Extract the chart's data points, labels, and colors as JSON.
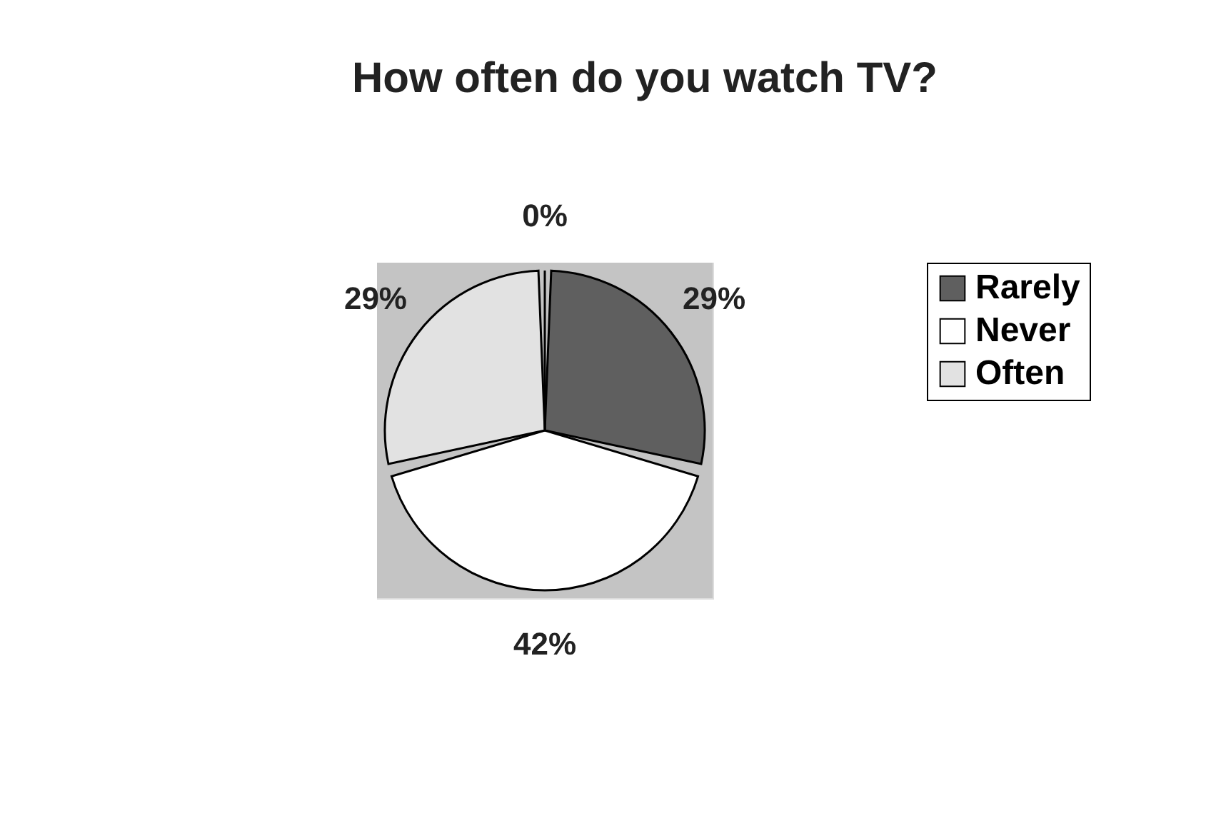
{
  "chart_data": {
    "type": "pie",
    "title": "How often do you watch TV?",
    "categories": [
      "Rarely",
      "Never",
      "Often",
      null
    ],
    "values": [
      29,
      42,
      29,
      0
    ],
    "colors": [
      "#5f5f5f",
      "#ffffff",
      "#e2e2e2",
      "#ffffff"
    ],
    "value_labels": [
      "29%",
      "42%",
      "29%",
      "0%"
    ],
    "legend": "right"
  }
}
